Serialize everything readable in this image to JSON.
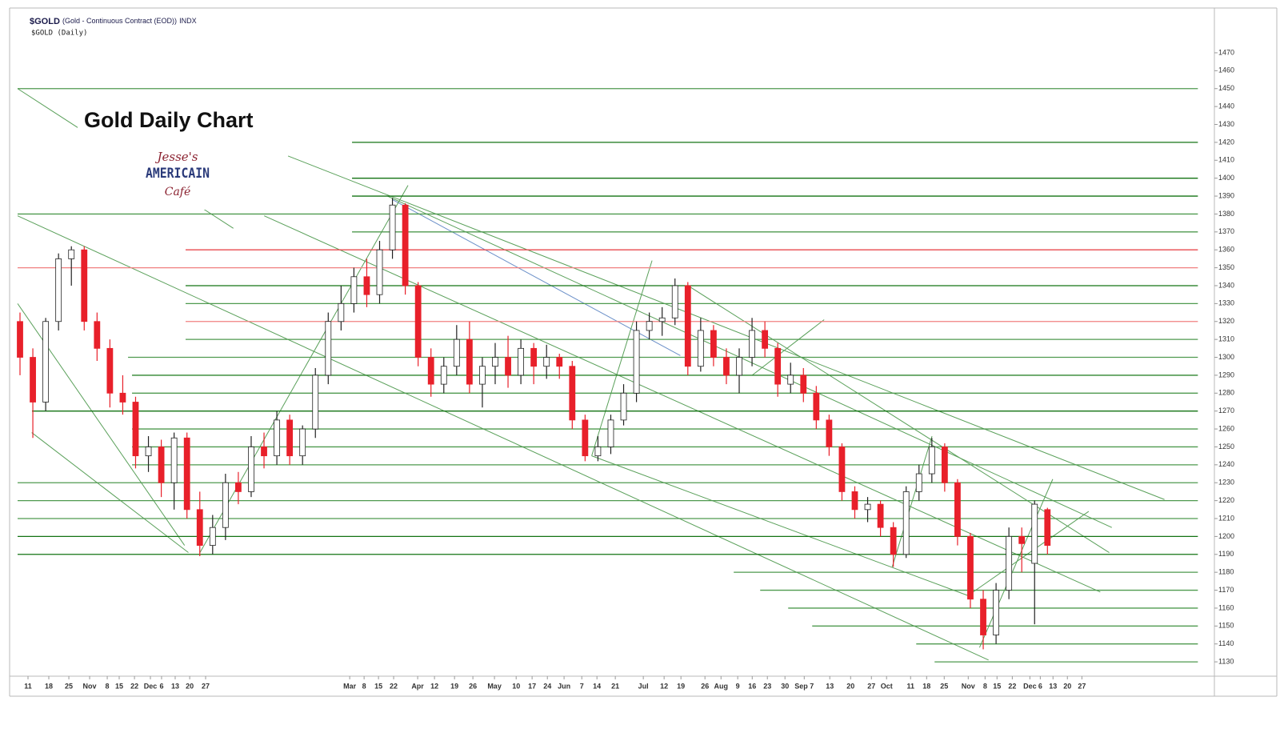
{
  "chart_data": {
    "type": "candlestick",
    "header_symbol": "$GOLD",
    "header_name": "(Gold - Continuous Contract (EOD))",
    "header_exchange": "INDX",
    "subtitle": "$GOLD (Daily)",
    "title": "Gold Daily Chart",
    "logo_top": "Jesse's",
    "logo_middle": "AMERICAIN",
    "logo_bottom": "Café",
    "up_color": "#ffffff",
    "down_color": "#e8202a",
    "ylim": [
      1122,
      1495
    ],
    "yticks": [
      1130,
      1140,
      1150,
      1160,
      1170,
      1180,
      1190,
      1200,
      1210,
      1220,
      1230,
      1240,
      1250,
      1260,
      1270,
      1280,
      1290,
      1300,
      1310,
      1320,
      1330,
      1340,
      1350,
      1360,
      1370,
      1380,
      1390,
      1400,
      1410,
      1420,
      1430,
      1440,
      1450,
      1460,
      1470
    ],
    "xlim": [
      0,
      93
    ],
    "xticks": [
      {
        "value": 0.81,
        "label": "11"
      },
      {
        "value": 2.43,
        "label": "18"
      },
      {
        "value": 3.99,
        "label": "25"
      },
      {
        "value": 5.61,
        "label": "Nov"
      },
      {
        "value": 6.98,
        "label": "8"
      },
      {
        "value": 7.91,
        "label": "15"
      },
      {
        "value": 9.1,
        "label": "22"
      },
      {
        "value": 10.34,
        "label": "Dec"
      },
      {
        "value": 11.21,
        "label": "6"
      },
      {
        "value": 12.27,
        "label": "13"
      },
      {
        "value": 13.4,
        "label": "20"
      },
      {
        "value": 14.64,
        "label": "27"
      },
      {
        "value": 25.86,
        "label": "Mar"
      },
      {
        "value": 26.98,
        "label": "8"
      },
      {
        "value": 28.1,
        "label": "15"
      },
      {
        "value": 29.28,
        "label": "22"
      },
      {
        "value": 31.15,
        "label": "Apr"
      },
      {
        "value": 32.46,
        "label": "12"
      },
      {
        "value": 34.02,
        "label": "19"
      },
      {
        "value": 35.45,
        "label": "26"
      },
      {
        "value": 37.13,
        "label": "May"
      },
      {
        "value": 38.82,
        "label": "10"
      },
      {
        "value": 40.06,
        "label": "17"
      },
      {
        "value": 41.25,
        "label": "24"
      },
      {
        "value": 42.55,
        "label": "Jun"
      },
      {
        "value": 43.93,
        "label": "7"
      },
      {
        "value": 45.11,
        "label": "14"
      },
      {
        "value": 46.54,
        "label": "21"
      },
      {
        "value": 48.72,
        "label": "Jul"
      },
      {
        "value": 50.34,
        "label": "12"
      },
      {
        "value": 51.65,
        "label": "19"
      },
      {
        "value": 53.52,
        "label": "26"
      },
      {
        "value": 54.77,
        "label": "Aug"
      },
      {
        "value": 56.07,
        "label": "9"
      },
      {
        "value": 57.2,
        "label": "16"
      },
      {
        "value": 58.38,
        "label": "23"
      },
      {
        "value": 59.75,
        "label": "30"
      },
      {
        "value": 61.25,
        "label": "Sep 7"
      },
      {
        "value": 63.24,
        "label": "13"
      },
      {
        "value": 64.86,
        "label": "20"
      },
      {
        "value": 66.48,
        "label": "27"
      },
      {
        "value": 67.66,
        "label": "Oct"
      },
      {
        "value": 69.53,
        "label": "11"
      },
      {
        "value": 70.78,
        "label": "18"
      },
      {
        "value": 72.15,
        "label": "25"
      },
      {
        "value": 74.02,
        "label": "Nov"
      },
      {
        "value": 75.33,
        "label": "8"
      },
      {
        "value": 76.26,
        "label": "15"
      },
      {
        "value": 77.45,
        "label": "22"
      },
      {
        "value": 78.82,
        "label": "Dec"
      },
      {
        "value": 79.63,
        "label": "6"
      },
      {
        "value": 80.62,
        "label": "13"
      },
      {
        "value": 81.74,
        "label": "20"
      },
      {
        "value": 82.87,
        "label": "27"
      }
    ],
    "open": [
      1320,
      1300,
      1275,
      1320,
      1355,
      1360,
      1320,
      1305,
      1280,
      1275,
      1245,
      1250,
      1230,
      1255,
      1215,
      1195,
      1205,
      1230,
      1225,
      1250,
      1245,
      1265,
      1245,
      1260,
      1290,
      1320,
      1330,
      1345,
      1335,
      1360,
      1385,
      1340,
      1300,
      1285,
      1295,
      1310,
      1285,
      1295,
      1300,
      1290,
      1305,
      1295,
      1300,
      1295,
      1265,
      1245,
      1250,
      1265,
      1280,
      1315,
      1320,
      1322,
      1340,
      1295,
      1315,
      1300,
      1290,
      1300,
      1315,
      1305,
      1285,
      1290,
      1280,
      1265,
      1250,
      1225,
      1215,
      1218,
      1205,
      1190,
      1225,
      1235,
      1250,
      1230,
      1200,
      1165,
      1145,
      1170,
      1200,
      1185,
      1215
    ],
    "high": [
      1325,
      1305,
      1322,
      1358,
      1362,
      1362,
      1325,
      1310,
      1290,
      1278,
      1256,
      1254,
      1258,
      1258,
      1225,
      1212,
      1235,
      1236,
      1256,
      1258,
      1270,
      1268,
      1262,
      1294,
      1325,
      1340,
      1350,
      1355,
      1365,
      1389,
      1386,
      1342,
      1305,
      1300,
      1318,
      1320,
      1300,
      1308,
      1312,
      1310,
      1308,
      1307,
      1302,
      1298,
      1268,
      1256,
      1268,
      1285,
      1320,
      1325,
      1328,
      1344,
      1342,
      1322,
      1318,
      1305,
      1305,
      1322,
      1320,
      1308,
      1297,
      1294,
      1284,
      1268,
      1252,
      1228,
      1222,
      1220,
      1208,
      1228,
      1240,
      1255,
      1252,
      1232,
      1202,
      1170,
      1174,
      1205,
      1205,
      1220,
      1216
    ],
    "low": [
      1290,
      1255,
      1270,
      1315,
      1340,
      1315,
      1298,
      1272,
      1268,
      1238,
      1236,
      1222,
      1215,
      1210,
      1189,
      1190,
      1198,
      1218,
      1222,
      1238,
      1240,
      1240,
      1240,
      1255,
      1285,
      1315,
      1325,
      1328,
      1330,
      1355,
      1335,
      1295,
      1278,
      1280,
      1290,
      1280,
      1272,
      1285,
      1283,
      1285,
      1285,
      1288,
      1288,
      1260,
      1242,
      1242,
      1246,
      1262,
      1275,
      1310,
      1312,
      1318,
      1290,
      1292,
      1295,
      1285,
      1280,
      1295,
      1300,
      1278,
      1280,
      1275,
      1260,
      1245,
      1220,
      1210,
      1208,
      1200,
      1183,
      1188,
      1220,
      1230,
      1225,
      1195,
      1160,
      1137,
      1140,
      1165,
      1180,
      1151,
      1190
    ],
    "close": [
      1300,
      1275,
      1320,
      1355,
      1360,
      1320,
      1305,
      1280,
      1275,
      1245,
      1250,
      1230,
      1255,
      1215,
      1195,
      1205,
      1230,
      1225,
      1250,
      1245,
      1265,
      1245,
      1260,
      1290,
      1320,
      1330,
      1345,
      1335,
      1360,
      1385,
      1340,
      1300,
      1285,
      1295,
      1310,
      1285,
      1295,
      1300,
      1290,
      1305,
      1295,
      1300,
      1295,
      1265,
      1245,
      1250,
      1265,
      1280,
      1315,
      1320,
      1322,
      1340,
      1295,
      1315,
      1300,
      1290,
      1300,
      1315,
      1305,
      1285,
      1290,
      1280,
      1265,
      1250,
      1225,
      1215,
      1218,
      1205,
      1190,
      1225,
      1235,
      1250,
      1230,
      1200,
      1165,
      1145,
      1170,
      1200,
      1196,
      1218,
      1195
    ],
    "hlines": [
      {
        "y": 1450,
        "x0": 0,
        "x1": 91.9,
        "color": "#4f9a4f"
      },
      {
        "y": 1420,
        "x0": 26.04,
        "x1": 91.9,
        "color": "#137313"
      },
      {
        "y": 1400,
        "x0": 26.04,
        "x1": 91.9,
        "color": "#137313"
      },
      {
        "y": 1390,
        "x0": 26.04,
        "x1": 91.9,
        "color": "#137313"
      },
      {
        "y": 1380,
        "x0": 0,
        "x1": 91.9,
        "color": "#4f9a4f"
      },
      {
        "y": 1370,
        "x0": 26.04,
        "x1": 91.9,
        "color": "#4f9a4f"
      },
      {
        "y": 1360,
        "x0": 13.08,
        "x1": 91.9,
        "color": "#e8484e"
      },
      {
        "y": 1350,
        "x0": 0,
        "x1": 91.9,
        "color": "#f08080"
      },
      {
        "y": 1340,
        "x0": 13.08,
        "x1": 91.9,
        "color": "#137313"
      },
      {
        "y": 1330,
        "x0": 13.08,
        "x1": 91.9,
        "color": "#4f9a4f"
      },
      {
        "y": 1320,
        "x0": 13.08,
        "x1": 91.9,
        "color": "#f08080"
      },
      {
        "y": 1310,
        "x0": 13.08,
        "x1": 91.9,
        "color": "#4f9a4f"
      },
      {
        "y": 1300,
        "x0": 8.6,
        "x1": 91.9,
        "color": "#4f9a4f"
      },
      {
        "y": 1290,
        "x0": 8.91,
        "x1": 91.9,
        "color": "#2f852f"
      },
      {
        "y": 1280,
        "x0": 8.91,
        "x1": 91.9,
        "color": "#4f9a4f"
      },
      {
        "y": 1270,
        "x0": 1.12,
        "x1": 91.9,
        "color": "#137313"
      },
      {
        "y": 1260,
        "x0": 8.91,
        "x1": 91.9,
        "color": "#4f9a4f"
      },
      {
        "y": 1250,
        "x0": 8.91,
        "x1": 91.9,
        "color": "#4f9a4f"
      },
      {
        "y": 1240,
        "x0": 8.91,
        "x1": 91.9,
        "color": "#4f9a4f"
      },
      {
        "y": 1230,
        "x0": 0,
        "x1": 91.9,
        "color": "#4f9a4f"
      },
      {
        "y": 1220,
        "x0": 0,
        "x1": 91.9,
        "color": "#4f9a4f"
      },
      {
        "y": 1210,
        "x0": 0,
        "x1": 91.9,
        "color": "#4f9a4f"
      },
      {
        "y": 1200,
        "x0": 0,
        "x1": 91.9,
        "color": "#137313"
      },
      {
        "y": 1190,
        "x0": 0,
        "x1": 91.9,
        "color": "#137313"
      },
      {
        "y": 1180,
        "x0": 55.76,
        "x1": 91.9,
        "color": "#4f9a4f"
      },
      {
        "y": 1170,
        "x0": 57.82,
        "x1": 91.9,
        "color": "#4f9a4f"
      },
      {
        "y": 1160,
        "x0": 60.0,
        "x1": 91.9,
        "color": "#4f9a4f"
      },
      {
        "y": 1150,
        "x0": 61.87,
        "x1": 91.9,
        "color": "#4f9a4f"
      },
      {
        "y": 1140,
        "x0": 69.97,
        "x1": 91.9,
        "color": "#4f9a4f"
      },
      {
        "y": 1130,
        "x0": 71.4,
        "x1": 91.9,
        "color": "#4f9a4f"
      }
    ],
    "trendlines": [
      {
        "x0": 21.06,
        "y0": 1412.4,
        "x1": 89.3,
        "y1": 1220.6,
        "color": "#5aa05a"
      },
      {
        "x0": 28.8,
        "y0": 1390,
        "x1": 85.2,
        "y1": 1205,
        "color": "#5aa05a"
      },
      {
        "x0": 29.2,
        "y0": 1388,
        "x1": 51.6,
        "y1": 1301,
        "color": "#6a8fc8"
      },
      {
        "x0": 0,
        "y0": 1379,
        "x1": 75.6,
        "y1": 1131,
        "color": "#5aa05a"
      },
      {
        "x0": 19.2,
        "y0": 1379,
        "x1": 84.3,
        "y1": 1169,
        "color": "#5aa05a"
      },
      {
        "x0": 14.2,
        "y0": 1191,
        "x1": 30.4,
        "y1": 1396,
        "color": "#5aa05a"
      },
      {
        "x0": 1.1,
        "y0": 1258,
        "x1": 13.3,
        "y1": 1191,
        "color": "#5aa05a"
      },
      {
        "x0": 44.7,
        "y0": 1245,
        "x1": 49.4,
        "y1": 1354,
        "color": "#5aa05a"
      },
      {
        "x0": 44.7,
        "y0": 1245,
        "x1": 74.0,
        "y1": 1167,
        "color": "#5aa05a"
      },
      {
        "x0": 68.1,
        "y0": 1183,
        "x1": 71.2,
        "y1": 1256,
        "color": "#5aa05a"
      },
      {
        "x0": 74.0,
        "y0": 1167,
        "x1": 83.4,
        "y1": 1214,
        "color": "#5aa05a"
      },
      {
        "x0": 74.9,
        "y0": 1138,
        "x1": 80.6,
        "y1": 1232,
        "color": "#5aa05a"
      },
      {
        "x0": 52.2,
        "y0": 1340,
        "x1": 85.0,
        "y1": 1191,
        "color": "#5aa05a"
      },
      {
        "x0": 57.2,
        "y0": 1290,
        "x1": 62.8,
        "y1": 1321,
        "color": "#5aa05a"
      },
      {
        "x0": 0,
        "y0": 1450,
        "x1": 16.8,
        "y1": 1372,
        "color": "#5aa05a"
      },
      {
        "x0": 0,
        "y0": 1330,
        "x1": 13.0,
        "y1": 1195,
        "color": "#5aa05a"
      }
    ]
  }
}
